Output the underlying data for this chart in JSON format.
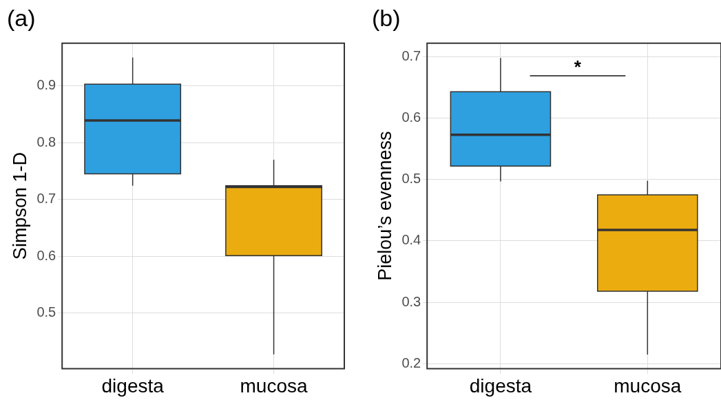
{
  "chart_data": [
    {
      "type": "box",
      "title": "(a)",
      "ylabel": "Simpson 1-D",
      "categories": [
        "digesta",
        "mucosa"
      ],
      "colors": [
        "#2e9fdf",
        "#ebac10"
      ],
      "boxes": [
        {
          "low": 0.724,
          "q1": 0.745,
          "median": 0.839,
          "q3": 0.903,
          "high": 0.95
        },
        {
          "low": 0.427,
          "q1": 0.601,
          "median": 0.722,
          "q3": 0.724,
          "high": 0.77
        }
      ],
      "ylim": [
        0.402,
        0.975
      ],
      "yticks": [
        0.5,
        0.6,
        0.7,
        0.8,
        0.9
      ],
      "grid": true
    },
    {
      "type": "box",
      "title": "(b)",
      "ylabel": "Pielou’s evenness",
      "categories": [
        "digesta",
        "mucosa"
      ],
      "colors": [
        "#2e9fdf",
        "#ebac10"
      ],
      "boxes": [
        {
          "low": 0.497,
          "q1": 0.522,
          "median": 0.573,
          "q3": 0.643,
          "high": 0.698
        },
        {
          "low": 0.215,
          "q1": 0.318,
          "median": 0.418,
          "q3": 0.475,
          "high": 0.498
        }
      ],
      "ylim": [
        0.192,
        0.722
      ],
      "yticks": [
        0.2,
        0.3,
        0.4,
        0.5,
        0.6,
        0.7
      ],
      "grid": true,
      "annotations": [
        "*"
      ]
    }
  ]
}
